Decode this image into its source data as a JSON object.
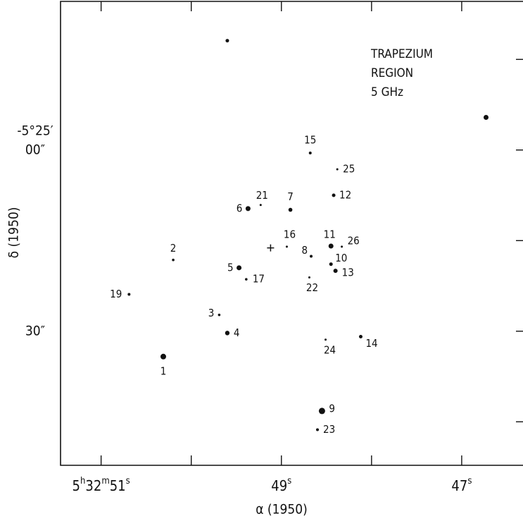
{
  "chart_data": {
    "type": "scatter",
    "title_lines": [
      "TRAPEZIUM",
      "REGION",
      "5 GHz"
    ],
    "x_label": "α (1950)",
    "y_label": "δ (1950)",
    "y_prefix": "-5°25′",
    "xlim": [
      51.45,
      46.32
    ],
    "ylim": [
      52.2,
      -24.6
    ],
    "xticks": [
      {
        "value": 51,
        "label": "5h32m51s"
      },
      {
        "value": 49,
        "label": "49s"
      },
      {
        "value": 47,
        "label": "47s"
      }
    ],
    "xminor_ticks": [
      50,
      48
    ],
    "yticks": [
      {
        "value": 0,
        "label": "00″"
      },
      {
        "value": 30,
        "label": "30″"
      }
    ],
    "yminor_ticks": [
      -15,
      15,
      45
    ],
    "color": "#111111",
    "x": [
      49.6,
      46.73,
      50.31,
      50.2,
      49.69,
      49.6,
      49.47,
      49.37,
      48.9,
      48.67,
      48.55,
      48.45,
      48.45,
      48.42,
      48.4,
      48.12,
      48.68,
      48.94,
      49.39,
      50.69,
      49.23,
      48.69,
      48.6,
      48.51,
      48.38,
      48.33
    ],
    "y": [
      -18.1,
      -5.4,
      34.2,
      18.2,
      27.3,
      30.3,
      19.5,
      9.7,
      9.9,
      17.6,
      43.2,
      18.9,
      15.9,
      7.5,
      20.0,
      30.9,
      0.5,
      16.0,
      21.4,
      23.9,
      9.1,
      21.1,
      46.3,
      31.4,
      3.2,
      16.0
    ],
    "sizes": [
      2.5,
      3.5,
      4,
      1.8,
      1.8,
      3.2,
      3.5,
      3.5,
      2.8,
      2,
      4.5,
      2.5,
      3.5,
      2.5,
      3,
      2.5,
      2,
      1.5,
      1.8,
      2,
      1.5,
      1.5,
      2,
      1.5,
      1.5,
      1.5
    ],
    "point_labels": [
      null,
      null,
      "1",
      "2",
      "3",
      "4",
      "5",
      "6",
      "7",
      "8",
      "9",
      "10",
      "11",
      "12",
      "13",
      "14",
      "15",
      "16",
      "17",
      "19",
      "21",
      "22",
      "23",
      "24",
      "25",
      "26"
    ],
    "cross": {
      "x": 49.12,
      "y": 16.2
    }
  }
}
